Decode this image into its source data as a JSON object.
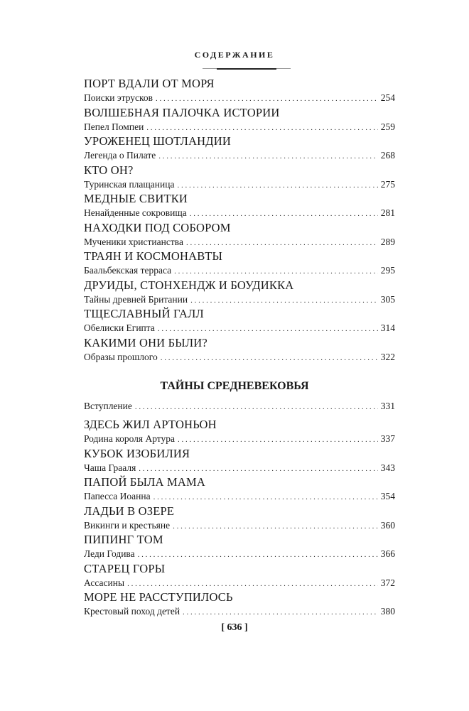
{
  "header": {
    "title": "СОДЕРЖАНИЕ"
  },
  "part1": [
    {
      "heading": "ПОРТ ВДАЛИ ОТ МОРЯ",
      "sub": "Поиски этрусков",
      "page": "254"
    },
    {
      "heading": "ВОЛШЕБНАЯ ПАЛОЧКА ИСТОРИИ",
      "sub": "Пепел Помпеи",
      "page": "259"
    },
    {
      "heading": "УРОЖЕНЕЦ ШОТЛАНДИИ",
      "sub": "Легенда о Пилате",
      "page": "268"
    },
    {
      "heading": "КТО ОН?",
      "sub": "Туринская плащаница",
      "page": "275"
    },
    {
      "heading": "МЕДНЫЕ СВИТКИ",
      "sub": "Ненайденные сокровища",
      "page": "281"
    },
    {
      "heading": "НАХОДКИ ПОД СОБОРОМ",
      "sub": "Мученики христианства",
      "page": "289"
    },
    {
      "heading": "ТРАЯН И КОСМОНАВТЫ",
      "sub": "Баальбекская терраса",
      "page": "295"
    },
    {
      "heading": "ДРУИДЫ, СТОНХЕНДЖ И БОУДИККА",
      "sub": "Тайны древней Британии",
      "page": "305"
    },
    {
      "heading": "ТЩЕСЛАВНЫЙ ГАЛЛ",
      "sub": "Обелиски Египта",
      "page": "314"
    },
    {
      "heading": "КАКИМИ ОНИ БЫЛИ?",
      "sub": "Образы прошлого",
      "page": "322"
    }
  ],
  "section2": {
    "title": "ТАЙНЫ СРЕДНЕВЕКОВЬЯ",
    "intro": {
      "sub": "Вступление",
      "page": "331"
    }
  },
  "part2": [
    {
      "heading": "ЗДЕСЬ ЖИЛ АРТОНЬОН",
      "sub": "Родина короля Артура",
      "page": "337"
    },
    {
      "heading": "КУБОК ИЗОБИЛИЯ",
      "sub": "Чаша Грааля",
      "page": "343"
    },
    {
      "heading": "ПАПОЙ БЫЛА МАМА",
      "sub": "Папесса Иоанна",
      "page": "354"
    },
    {
      "heading": "ЛАДЬИ В ОЗЕРЕ",
      "sub": "Викинги и крестьяне",
      "page": "360"
    },
    {
      "heading": "ПИПИНГ ТОМ",
      "sub": "Леди Годива",
      "page": "366"
    },
    {
      "heading": "СТАРЕЦ ГОРЫ",
      "sub": "Ассасины",
      "page": "372"
    },
    {
      "heading": "МОРЕ НЕ РАССТУПИЛОСЬ",
      "sub": "Крестовый поход детей",
      "page": "380"
    }
  ],
  "footer": {
    "page_number": "[ 636 ]"
  }
}
